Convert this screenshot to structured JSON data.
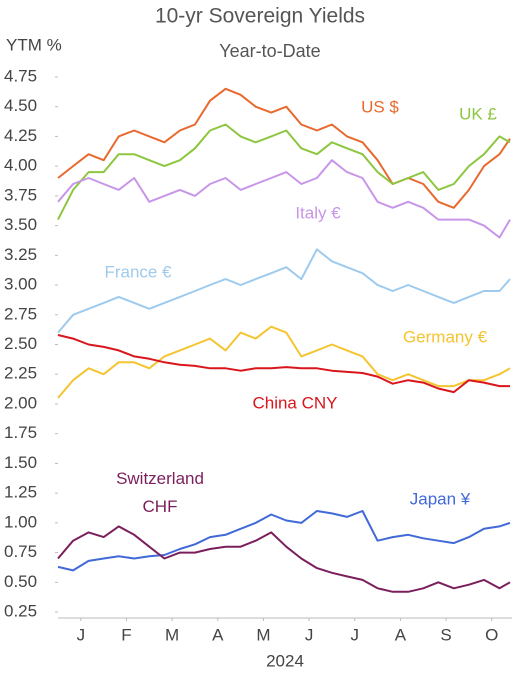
{
  "chart_data": {
    "type": "line",
    "title": "10-yr Sovereign Yields",
    "subtitle": "Year-to-Date",
    "y_label": "YTM %",
    "x_label": "2024",
    "xlim": [
      0,
      9.9
    ],
    "xticks": [
      {
        "value": 0.5,
        "label": "J"
      },
      {
        "value": 1.5,
        "label": "F"
      },
      {
        "value": 2.5,
        "label": "M"
      },
      {
        "value": 3.5,
        "label": "A"
      },
      {
        "value": 4.5,
        "label": "M"
      },
      {
        "value": 5.5,
        "label": "J"
      },
      {
        "value": 6.5,
        "label": "J"
      },
      {
        "value": 7.5,
        "label": "A"
      },
      {
        "value": 8.5,
        "label": "S"
      },
      {
        "value": 9.5,
        "label": "O"
      }
    ],
    "ylim": [
      0.2,
      4.8
    ],
    "yticks": [
      0.25,
      {
        "value": 0.5,
        "label": "0.50"
      },
      0.75,
      {
        "value": 1,
        "label": "1.00"
      },
      1.25,
      {
        "value": 1.5,
        "label": "1.50"
      },
      1.75,
      {
        "value": 2,
        "label": "2.00"
      },
      2.25,
      {
        "value": 2.5,
        "label": "2.50"
      },
      2.75,
      {
        "value": 3,
        "label": "3.00"
      },
      3.25,
      {
        "value": 3.5,
        "label": "3.50"
      },
      3.75,
      {
        "value": 4,
        "label": "4.00"
      },
      4.25,
      {
        "value": 4.5,
        "label": "4.50"
      },
      4.75
    ],
    "x": [
      0,
      0.33,
      0.67,
      1,
      1.33,
      1.67,
      2,
      2.33,
      2.67,
      3,
      3.33,
      3.67,
      4,
      4.33,
      4.67,
      5,
      5.33,
      5.67,
      6,
      6.33,
      6.67,
      7,
      7.33,
      7.67,
      8,
      8.33,
      8.67,
      9,
      9.33,
      9.67,
      9.9
    ],
    "series": [
      {
        "name": "US $",
        "color": "#e8692e",
        "values": [
          3.9,
          4.0,
          4.1,
          4.05,
          4.25,
          4.3,
          4.25,
          4.2,
          4.3,
          4.35,
          4.55,
          4.65,
          4.6,
          4.5,
          4.45,
          4.5,
          4.35,
          4.3,
          4.35,
          4.25,
          4.2,
          4.05,
          3.85,
          3.9,
          3.85,
          3.7,
          3.65,
          3.8,
          4.0,
          4.1,
          4.23
        ]
      },
      {
        "name": "UK £",
        "color": "#8dc63f",
        "values": [
          3.55,
          3.8,
          3.95,
          3.95,
          4.1,
          4.1,
          4.05,
          4.0,
          4.05,
          4.15,
          4.3,
          4.35,
          4.25,
          4.2,
          4.25,
          4.3,
          4.15,
          4.1,
          4.2,
          4.15,
          4.1,
          3.95,
          3.85,
          3.9,
          3.95,
          3.8,
          3.85,
          4.0,
          4.1,
          4.25,
          4.2
        ]
      },
      {
        "name": "Italy €",
        "color": "#c896e8",
        "values": [
          3.7,
          3.85,
          3.9,
          3.85,
          3.8,
          3.9,
          3.7,
          3.75,
          3.8,
          3.75,
          3.85,
          3.9,
          3.8,
          3.85,
          3.9,
          3.95,
          3.85,
          3.9,
          4.05,
          3.95,
          3.9,
          3.7,
          3.65,
          3.7,
          3.65,
          3.55,
          3.55,
          3.55,
          3.5,
          3.4,
          3.55
        ]
      },
      {
        "name": "France €",
        "color": "#9ecbed",
        "values": [
          2.6,
          2.75,
          2.8,
          2.85,
          2.9,
          2.85,
          2.8,
          2.85,
          2.9,
          2.95,
          3.0,
          3.05,
          3.0,
          3.05,
          3.1,
          3.15,
          3.05,
          3.3,
          3.2,
          3.15,
          3.1,
          3.0,
          2.95,
          3.0,
          2.95,
          2.9,
          2.85,
          2.9,
          2.95,
          2.95,
          3.05
        ]
      },
      {
        "name": "Germany €",
        "color": "#f5c431",
        "values": [
          2.05,
          2.2,
          2.3,
          2.25,
          2.35,
          2.35,
          2.3,
          2.4,
          2.45,
          2.5,
          2.55,
          2.45,
          2.6,
          2.55,
          2.65,
          2.6,
          2.4,
          2.45,
          2.5,
          2.45,
          2.4,
          2.25,
          2.2,
          2.25,
          2.2,
          2.15,
          2.15,
          2.2,
          2.2,
          2.25,
          2.3
        ]
      },
      {
        "name": "China CNY",
        "color": "#d9161c",
        "values": [
          2.58,
          2.55,
          2.5,
          2.48,
          2.45,
          2.4,
          2.38,
          2.35,
          2.33,
          2.32,
          2.3,
          2.3,
          2.28,
          2.3,
          2.3,
          2.31,
          2.3,
          2.3,
          2.28,
          2.27,
          2.26,
          2.23,
          2.17,
          2.2,
          2.18,
          2.13,
          2.1,
          2.2,
          2.18,
          2.15,
          2.15
        ]
      },
      {
        "name": "Japan ¥",
        "color": "#4169d8",
        "values": [
          0.63,
          0.6,
          0.68,
          0.7,
          0.72,
          0.7,
          0.72,
          0.73,
          0.78,
          0.82,
          0.88,
          0.9,
          0.95,
          1.0,
          1.07,
          1.02,
          1.0,
          1.1,
          1.08,
          1.05,
          1.1,
          0.85,
          0.88,
          0.9,
          0.87,
          0.85,
          0.83,
          0.88,
          0.95,
          0.97,
          1.0
        ]
      },
      {
        "name": "Switzerland CHF",
        "color": "#7b1f5c",
        "values": [
          0.7,
          0.85,
          0.92,
          0.88,
          0.97,
          0.9,
          0.8,
          0.7,
          0.75,
          0.75,
          0.78,
          0.8,
          0.8,
          0.85,
          0.92,
          0.8,
          0.7,
          0.62,
          0.58,
          0.55,
          0.52,
          0.45,
          0.42,
          0.42,
          0.45,
          0.5,
          0.45,
          0.48,
          0.52,
          0.45,
          0.5
        ]
      }
    ]
  }
}
